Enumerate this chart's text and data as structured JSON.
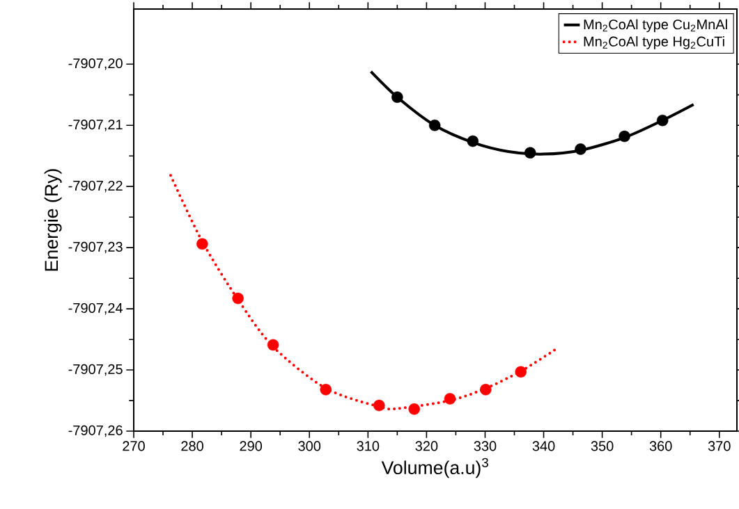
{
  "chart_data": {
    "type": "scatter",
    "xlabel": "Volume(a.u)$^{3}$",
    "ylabel": "Energie (Ry)",
    "xlim": [
      270,
      373
    ],
    "ylim": [
      -7907.26,
      -7907.191
    ],
    "xticks": [
      270,
      280,
      290,
      300,
      310,
      320,
      330,
      340,
      350,
      360,
      370
    ],
    "yticks": [
      {
        "value": -7907.26,
        "label": "-7907,26"
      },
      {
        "value": -7907.25,
        "label": "-7907,25"
      },
      {
        "value": -7907.24,
        "label": "-7907,24"
      },
      {
        "value": -7907.23,
        "label": "-7907,23"
      },
      {
        "value": -7907.22,
        "label": "-7907,22"
      },
      {
        "value": -7907.21,
        "label": "-7907,21"
      },
      {
        "value": -7907.2,
        "label": "-7907,20"
      }
    ],
    "legend": "top right",
    "series": [
      {
        "type": "line",
        "name": "Mn$_{2}$CoAl type Cu$_{2}$MnAl",
        "color": "#000000",
        "line_style": "solid",
        "x": [
          310.5,
          315.0,
          321.4,
          327.9,
          334.0,
          340.0,
          346.3,
          353.8,
          360.3,
          365.6
        ],
        "values": [
          -7907.2012,
          -7907.2054,
          -7907.21,
          -7907.2128,
          -7907.2143,
          -7907.2147,
          -7907.2141,
          -7907.212,
          -7907.2092,
          -7907.2066
        ]
      },
      {
        "type": "line",
        "name": "Mn$_{2}$CoAl type Hg$_{2}$CuTi",
        "color": "#ff0000",
        "line_style": "dotted",
        "x": [
          276.3,
          281.7,
          287.8,
          293.8,
          302.8,
          311.9,
          315.1,
          324.0,
          330.1,
          336.1,
          342.1
        ],
        "values": [
          -7907.2182,
          -7907.229,
          -7907.2385,
          -7907.2462,
          -7907.253,
          -7907.256,
          -7907.2563,
          -7907.255,
          -7907.253,
          -7907.2502,
          -7907.2466
        ]
      },
      {
        "color": "#000000",
        "marker": "circle",
        "x": [
          315.0,
          321.4,
          327.9,
          337.7,
          346.3,
          353.8,
          360.3
        ],
        "values": [
          -7907.2054,
          -7907.21,
          -7907.2126,
          -7907.2145,
          -7907.2139,
          -7907.2118,
          -7907.2092
        ]
      },
      {
        "color": "#ff0000",
        "marker": "circle",
        "x": [
          281.7,
          287.8,
          293.8,
          302.8,
          311.9,
          317.9,
          324.0,
          330.1,
          336.1
        ],
        "values": [
          -7907.2294,
          -7907.2383,
          -7907.2459,
          -7907.2532,
          -7907.2558,
          -7907.2564,
          -7907.2547,
          -7907.2532,
          -7907.2503
        ]
      }
    ]
  }
}
